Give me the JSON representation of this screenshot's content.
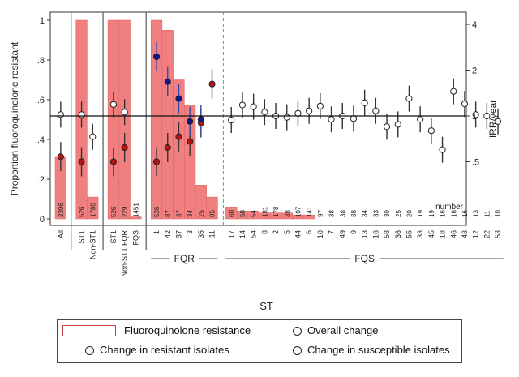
{
  "chart_data": {
    "type": "bar",
    "ylabel": "Proportion fluoroquinolone resistant",
    "y2label": "IRR/year",
    "xlabel": "ST",
    "ylim": [
      0,
      1
    ],
    "yticks": [
      "0",
      ".2",
      ".4",
      ".6",
      ".8",
      "1"
    ],
    "y2scale": "log",
    "y2ticks": [
      "4",
      "2",
      "1",
      ".5"
    ],
    "reference_line_y2": 1,
    "count_header": "number",
    "groups": [
      {
        "label": "",
        "categories": [
          "All"
        ],
        "proportion": [
          0.31
        ],
        "n": [
          "2306"
        ],
        "overall": [
          1.02
        ],
        "resistant": [
          0.54
        ],
        "susceptible": [
          null
        ]
      },
      {
        "label": "",
        "categories": [
          "ST1",
          "Non-ST1"
        ],
        "proportion": [
          1.0,
          0.11
        ],
        "n": [
          "526",
          "1780"
        ],
        "overall": [
          1.02,
          0.73
        ],
        "resistant": [
          0.5,
          null
        ],
        "susceptible": [
          null,
          null
        ]
      },
      {
        "label": "",
        "categories": [
          "ST1",
          "Non-ST1 FQR",
          "FQS"
        ],
        "proportion": [
          1.0,
          1.0,
          0.01
        ],
        "n": [
          "526",
          "229",
          "1451"
        ],
        "overall": [
          1.19,
          1.06,
          null
        ],
        "resistant": [
          0.5,
          0.62,
          null
        ],
        "susceptible": [
          null,
          null,
          null
        ]
      },
      {
        "label": "FQR",
        "categories": [
          "1",
          "42",
          "37",
          "3",
          "35",
          "11"
        ],
        "proportion": [
          1.0,
          0.95,
          0.7,
          0.57,
          0.17,
          0.11
        ],
        "n": [
          "526",
          "87",
          "37",
          "34",
          "25",
          "85"
        ],
        "overall": [
          null,
          null,
          null,
          null,
          null,
          null
        ],
        "resistant": [
          0.5,
          0.62,
          0.73,
          0.68,
          0.9,
          1.62
        ],
        "susceptible": [
          2.45,
          1.68,
          1.3,
          0.92,
          0.95,
          null
        ]
      },
      {
        "label": "FQS",
        "categories": [
          "17",
          "14",
          "54",
          "8",
          "2",
          "5",
          "44",
          "6",
          "10",
          "7",
          "49",
          "9",
          "13",
          "16",
          "58",
          "36",
          "55",
          "33",
          "45",
          "18",
          "46",
          "43",
          "12",
          "22",
          "53"
        ],
        "proportion": [
          0.06,
          0.04,
          0.04,
          0.03,
          0.03,
          0.03,
          0.02,
          0.02,
          0.0,
          0.0,
          0.0,
          0.0,
          0.0,
          0.0,
          0.0,
          0.0,
          0.0,
          0.0,
          0.0,
          0.0,
          0.0,
          0.0,
          0.0,
          0.0,
          0.0
        ],
        "n": [
          "60",
          "58",
          "54",
          "181",
          "178",
          "38",
          "107",
          "141",
          "97",
          "38",
          "38",
          "38",
          "34",
          "33",
          "30",
          "25",
          "20",
          "19",
          "19",
          "16",
          "16",
          "16",
          "13",
          "11",
          "10"
        ],
        "overall": [
          0.94,
          1.18,
          1.15,
          1.06,
          1.0,
          0.98,
          1.04,
          1.08,
          1.16,
          0.95,
          1.0,
          0.96,
          1.22,
          1.08,
          0.85,
          0.88,
          1.3,
          0.95,
          0.8,
          0.6,
          1.45,
          1.2,
          1.02,
          1.0,
          0.92
        ],
        "resistant": [
          null,
          null,
          null,
          null,
          null,
          null,
          null,
          null,
          null,
          null,
          null,
          null,
          null,
          null,
          null,
          null,
          null,
          null,
          null,
          null,
          null,
          null,
          null,
          null,
          null
        ],
        "susceptible": [
          null,
          null,
          null,
          null,
          null,
          null,
          null,
          null,
          null,
          null,
          null,
          null,
          null,
          null,
          null,
          null,
          null,
          null,
          null,
          null,
          null,
          null,
          null,
          null,
          null
        ]
      }
    ]
  },
  "legend": {
    "items": [
      {
        "label": "Fluoroquinolone resistance",
        "marker": "bar",
        "color": "#f08080"
      },
      {
        "label": "Overall change",
        "marker": "circle",
        "color": "#ffffff"
      },
      {
        "label": "Change in resistant isolates",
        "marker": "circle",
        "color": "#b41414"
      },
      {
        "label": "Change in susceptible isolates",
        "marker": "circle",
        "color": "#14148c"
      }
    ]
  },
  "colors": {
    "bar": "#f08080",
    "resistant": "#b41414",
    "susceptible": "#14148c",
    "overall": "#ffffff",
    "axis": "#333333",
    "separator": "#888888"
  }
}
